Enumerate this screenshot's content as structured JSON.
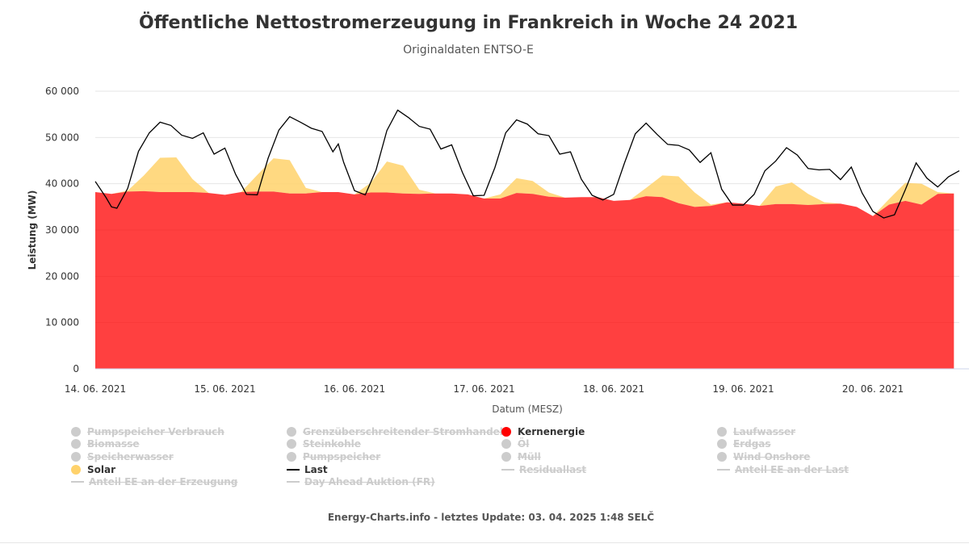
{
  "title": "Öffentliche Nettostromerzeugung in Frankreich in Woche 24 2021",
  "subtitle": "Originaldaten ENTSO-E",
  "footer": "Energy-Charts.info - letztes Update: 03. 04. 2025 1:48 SELČ",
  "chart_data": {
    "type": "area",
    "ylabel": "Leistung (MW)",
    "xlabel": "Datum (MESZ)",
    "ylim": [
      0,
      60000
    ],
    "y_ticks": [
      "0",
      "10 000",
      "20 000",
      "30 000",
      "40 000",
      "50 000",
      "60 000"
    ],
    "y_tick_values": [
      0,
      10000,
      20000,
      30000,
      40000,
      50000,
      60000
    ],
    "x_ticks": [
      "14. 06. 2021",
      "15. 06. 2021",
      "16. 06. 2021",
      "17. 06. 2021",
      "18. 06. 2021",
      "19. 06. 2021",
      "20. 06. 2021"
    ],
    "x_tick_values": [
      0,
      24,
      48,
      72,
      96,
      120,
      144
    ],
    "x_range_hours": [
      0,
      160
    ],
    "grid": "horizontal",
    "legend_position": "bottom",
    "series": [
      {
        "name": "Kernenergie",
        "kind": "area",
        "color": "#ff0000",
        "x": [
          0,
          3,
          6,
          9,
          12,
          15,
          18,
          21,
          24,
          27,
          30,
          33,
          36,
          39,
          42,
          45,
          48,
          51,
          54,
          57,
          60,
          63,
          66,
          69,
          72,
          75,
          78,
          81,
          84,
          87,
          90,
          93,
          96,
          99,
          102,
          105,
          108,
          111,
          114,
          117,
          120,
          123,
          126,
          129,
          132,
          135,
          138,
          141,
          144,
          147,
          150,
          153,
          156,
          159
        ],
        "values": [
          38200,
          37800,
          38300,
          38400,
          38200,
          38200,
          38200,
          38000,
          37600,
          38200,
          38300,
          38300,
          37900,
          37900,
          38200,
          38200,
          37700,
          38100,
          38100,
          37900,
          37800,
          37900,
          37900,
          37700,
          36800,
          36800,
          38000,
          37800,
          37200,
          37000,
          37100,
          37100,
          36300,
          36500,
          37300,
          37100,
          35800,
          35000,
          35200,
          36000,
          35700,
          35200,
          35600,
          35600,
          35400,
          35600,
          35700,
          35000,
          33000,
          35500,
          36300,
          35500,
          37800,
          37900
        ]
      },
      {
        "name": "Solar",
        "kind": "stacked-area",
        "color": "#ffd26b",
        "x": [
          0,
          3,
          6,
          9,
          12,
          15,
          18,
          21,
          24,
          27,
          30,
          33,
          36,
          39,
          42,
          45,
          48,
          51,
          54,
          57,
          60,
          63,
          66,
          69,
          72,
          75,
          78,
          81,
          84,
          87,
          90,
          93,
          96,
          99,
          102,
          105,
          108,
          111,
          114,
          117,
          120,
          123,
          126,
          129,
          132,
          135,
          138,
          141,
          144,
          147,
          150,
          153,
          156,
          159
        ],
        "values": [
          0,
          0,
          200,
          3400,
          7400,
          7500,
          2800,
          0,
          0,
          0,
          3600,
          7200,
          7200,
          1200,
          0,
          0,
          0,
          2100,
          6700,
          6000,
          900,
          0,
          0,
          0,
          0,
          900,
          3200,
          2800,
          900,
          0,
          0,
          0,
          0,
          0,
          1800,
          4700,
          5800,
          3100,
          300,
          0,
          0,
          0,
          3800,
          4700,
          2400,
          400,
          0,
          0,
          0,
          1200,
          3900,
          4500,
          400,
          0
        ]
      },
      {
        "name": "Last",
        "kind": "line",
        "color": "#000000",
        "x": [
          0,
          2,
          3,
          4,
          6,
          8,
          10,
          12,
          14,
          16,
          18,
          20,
          21,
          22,
          24,
          26,
          28,
          30,
          32,
          34,
          36,
          38,
          40,
          42,
          44,
          45,
          46,
          48,
          50,
          52,
          54,
          56,
          58,
          60,
          62,
          64,
          66,
          68,
          70,
          72,
          74,
          76,
          78,
          80,
          82,
          84,
          86,
          88,
          90,
          92,
          94,
          96,
          98,
          100,
          102,
          104,
          106,
          108,
          110,
          112,
          114,
          116,
          118,
          120,
          122,
          124,
          126,
          128,
          130,
          132,
          134,
          136,
          138,
          140,
          142,
          144,
          146,
          148,
          150,
          152,
          154,
          156,
          158,
          160
        ],
        "values": [
          40500,
          37000,
          35000,
          34700,
          39000,
          47000,
          51000,
          53300,
          52600,
          50500,
          49800,
          51000,
          48600,
          46400,
          47700,
          42000,
          37700,
          37600,
          45500,
          51600,
          54500,
          53300,
          52000,
          51300,
          46900,
          48600,
          44600,
          38500,
          37600,
          43000,
          51500,
          55900,
          54300,
          52400,
          51800,
          47500,
          48400,
          42400,
          37400,
          37500,
          43500,
          51000,
          53800,
          52900,
          50800,
          50400,
          46400,
          46900,
          41000,
          37500,
          36500,
          37700,
          44500,
          50800,
          53100,
          50700,
          48500,
          48300,
          47300,
          44600,
          46700,
          38800,
          35400,
          35400,
          37700,
          42800,
          44900,
          47800,
          46200,
          43300,
          43000,
          43100,
          40900,
          43600,
          38000,
          34000,
          32600,
          33300,
          38700,
          44500,
          41200,
          39300,
          41500,
          42800
        ]
      }
    ]
  },
  "legend": [
    {
      "label": "Pumpspeicher Verbrauch",
      "active": false,
      "marker": "dot",
      "color": "#cccccc",
      "col": 0,
      "row": 0
    },
    {
      "label": "Biomasse",
      "active": false,
      "marker": "dot",
      "color": "#cccccc",
      "col": 0,
      "row": 1
    },
    {
      "label": "Speicherwasser",
      "active": false,
      "marker": "dot",
      "color": "#cccccc",
      "col": 0,
      "row": 2
    },
    {
      "label": "Solar",
      "active": true,
      "marker": "dot",
      "color": "#ffd26b",
      "col": 0,
      "row": 3
    },
    {
      "label": "Anteil EE an der Erzeugung",
      "active": false,
      "marker": "line",
      "color": "#cccccc",
      "col": 0,
      "row": 4
    },
    {
      "label": "Grenzüberschreitender Stromhandel",
      "active": false,
      "marker": "dot",
      "color": "#cccccc",
      "col": 1,
      "row": 0
    },
    {
      "label": "Steinkohle",
      "active": false,
      "marker": "dot",
      "color": "#cccccc",
      "col": 1,
      "row": 1
    },
    {
      "label": "Pumpspeicher",
      "active": false,
      "marker": "dot",
      "color": "#cccccc",
      "col": 1,
      "row": 2
    },
    {
      "label": "Last",
      "active": true,
      "marker": "line",
      "color": "#000000",
      "col": 1,
      "row": 3
    },
    {
      "label": "Day Ahead Auktion (FR)",
      "active": false,
      "marker": "line",
      "color": "#cccccc",
      "col": 1,
      "row": 4
    },
    {
      "label": "Kernenergie",
      "active": true,
      "marker": "dot",
      "color": "#ff0000",
      "col": 2,
      "row": 0
    },
    {
      "label": "Öl",
      "active": false,
      "marker": "dot",
      "color": "#cccccc",
      "col": 2,
      "row": 1
    },
    {
      "label": "Müll",
      "active": false,
      "marker": "dot",
      "color": "#cccccc",
      "col": 2,
      "row": 2
    },
    {
      "label": "Residuallast",
      "active": false,
      "marker": "line",
      "color": "#cccccc",
      "col": 2,
      "row": 3
    },
    {
      "label": "Laufwasser",
      "active": false,
      "marker": "dot",
      "color": "#cccccc",
      "col": 3,
      "row": 0
    },
    {
      "label": "Erdgas",
      "active": false,
      "marker": "dot",
      "color": "#cccccc",
      "col": 3,
      "row": 1
    },
    {
      "label": "Wind Onshore",
      "active": false,
      "marker": "dot",
      "color": "#cccccc",
      "col": 3,
      "row": 2
    },
    {
      "label": "Anteil EE an der Last",
      "active": false,
      "marker": "line",
      "color": "#cccccc",
      "col": 3,
      "row": 3
    }
  ]
}
